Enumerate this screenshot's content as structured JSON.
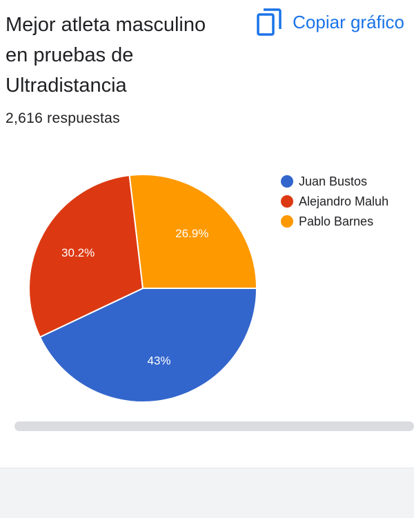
{
  "header": {
    "title": "Mejor atleta masculino en pruebas de Ultradistancia",
    "copy_label": "Copiar gráfico",
    "responses": "2,616 respuestas"
  },
  "colors": {
    "accent": "#1a73e8"
  },
  "icons": {
    "copy": "copy-icon"
  },
  "chart_data": {
    "type": "pie",
    "title": "Mejor atleta masculino en pruebas de Ultradistancia",
    "legend_position": "right",
    "slices": [
      {
        "name": "Juan Bustos",
        "value": 43,
        "label": "43%",
        "color": "#3366cc"
      },
      {
        "name": "Alejandro Maluh",
        "value": 30.2,
        "label": "30.2%",
        "color": "#dc3912"
      },
      {
        "name": "Pablo Barnes",
        "value": 26.9,
        "label": "26.9%",
        "color": "#ff9900"
      }
    ]
  }
}
